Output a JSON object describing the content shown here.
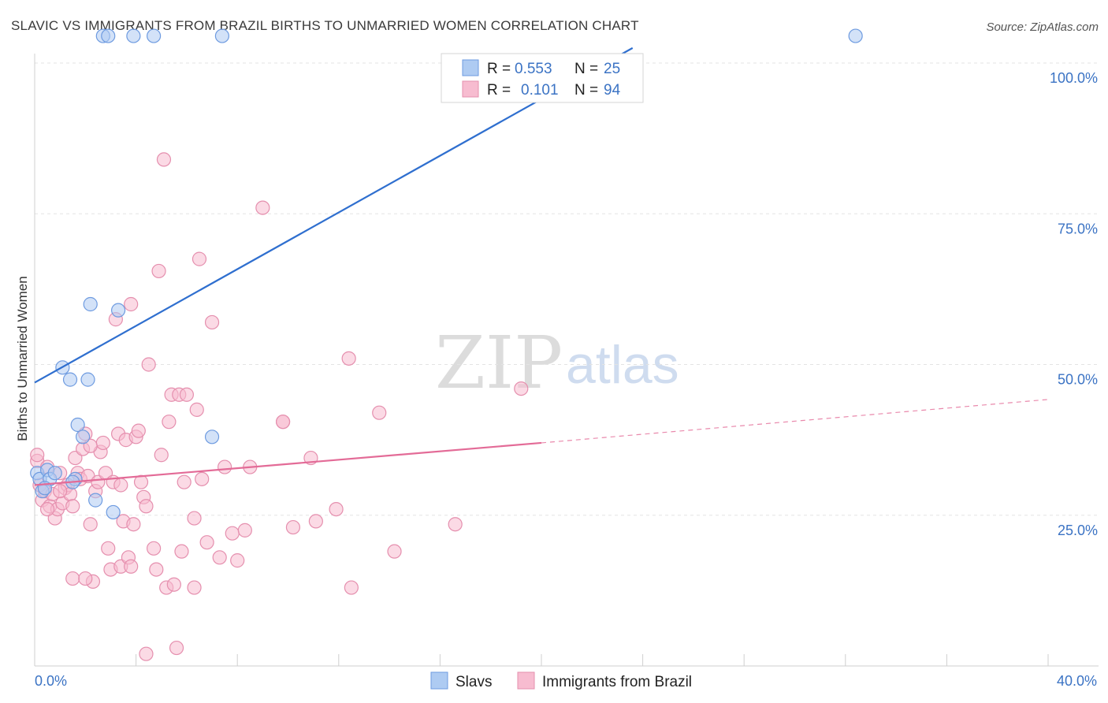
{
  "header": {
    "title": "SLAVIC VS IMMIGRANTS FROM BRAZIL BIRTHS TO UNMARRIED WOMEN CORRELATION CHART",
    "source": "Source: ZipAtlas.com"
  },
  "watermark": {
    "zip": "ZIP",
    "atlas": "atlas"
  },
  "legend": {
    "rows": [
      {
        "r_label": "R =",
        "r_value": "0.553",
        "n_label": "N =",
        "n_value": "25"
      },
      {
        "r_label": "R =",
        "r_value": "0.101",
        "n_label": "N =",
        "n_value": "94"
      }
    ]
  },
  "bottom_legend": {
    "slavs": "Slavs",
    "brazil": "Immigrants from Brazil"
  },
  "colors": {
    "slavs_fill": "#aecbf2",
    "slavs_stroke": "#6e9be0",
    "slavs_line": "#2f6fcf",
    "brazil_fill": "#f7bcd0",
    "brazil_stroke": "#e58fae",
    "brazil_line": "#e36b97",
    "tick_text": "#3b73c4",
    "grid": "#e3e3e3"
  },
  "chart_data": {
    "type": "scatter",
    "title": "SLAVIC VS IMMIGRANTS FROM BRAZIL BIRTHS TO UNMARRIED WOMEN CORRELATION CHART",
    "xlabel": "",
    "ylabel": "Births to Unmarried Women",
    "xlim": [
      0,
      40
    ],
    "ylim": [
      0,
      100
    ],
    "x_tick_labels": {
      "min": "0.0%",
      "max": "40.0%"
    },
    "y_ticks": [
      {
        "value": 25,
        "label": "25.0%"
      },
      {
        "value": 50,
        "label": "50.0%"
      },
      {
        "value": 75,
        "label": "75.0%"
      },
      {
        "value": 100,
        "label": "100.0%"
      }
    ],
    "grid": true,
    "legend_position": "top-center",
    "series": [
      {
        "name": "Slavs",
        "r": 0.553,
        "n": 25,
        "trend": {
          "x_start": 0.0,
          "y_start": 47.0,
          "x_end": 23.6,
          "y_end": 102.5,
          "dashed_extension": false
        },
        "points": [
          [
            0.1,
            32.0
          ],
          [
            0.2,
            31.0
          ],
          [
            0.3,
            29.0
          ],
          [
            0.5,
            32.5
          ],
          [
            0.6,
            31.0
          ],
          [
            0.8,
            32.0
          ],
          [
            1.1,
            49.5
          ],
          [
            1.4,
            47.5
          ],
          [
            1.6,
            31.0
          ],
          [
            1.7,
            40.0
          ],
          [
            1.9,
            38.0
          ],
          [
            2.1,
            47.5
          ],
          [
            2.2,
            60.0
          ],
          [
            2.4,
            27.5
          ],
          [
            2.7,
            104.5
          ],
          [
            2.9,
            104.5
          ],
          [
            3.1,
            25.5
          ],
          [
            3.3,
            59.0
          ],
          [
            3.9,
            104.5
          ],
          [
            4.7,
            104.5
          ],
          [
            7.4,
            104.5
          ],
          [
            7.0,
            38.0
          ],
          [
            32.4,
            104.5
          ],
          [
            0.4,
            29.5
          ],
          [
            1.5,
            30.5
          ]
        ]
      },
      {
        "name": "Immigrants from Brazil",
        "r": 0.101,
        "n": 94,
        "trend": {
          "x_start": 0.0,
          "y_start": 30.0,
          "x_end": 20.0,
          "y_end": 37.0,
          "dashed_to_x": 40.0,
          "dashed_to_y": 44.2
        },
        "points": [
          [
            0.1,
            34.0
          ],
          [
            0.2,
            30.0
          ],
          [
            0.3,
            27.5
          ],
          [
            0.4,
            29.0
          ],
          [
            0.5,
            33.0
          ],
          [
            0.6,
            26.5
          ],
          [
            0.7,
            28.5
          ],
          [
            0.8,
            24.5
          ],
          [
            0.9,
            26.0
          ],
          [
            1.0,
            32.0
          ],
          [
            1.1,
            27.0
          ],
          [
            1.2,
            29.5
          ],
          [
            1.3,
            30.0
          ],
          [
            1.4,
            28.5
          ],
          [
            1.5,
            26.5
          ],
          [
            1.6,
            34.5
          ],
          [
            1.7,
            32.0
          ],
          [
            1.8,
            31.0
          ],
          [
            1.9,
            36.0
          ],
          [
            2.0,
            38.5
          ],
          [
            2.1,
            31.5
          ],
          [
            2.2,
            23.5
          ],
          [
            2.3,
            14.0
          ],
          [
            2.4,
            29.0
          ],
          [
            2.5,
            30.5
          ],
          [
            2.6,
            35.5
          ],
          [
            2.7,
            37.0
          ],
          [
            2.8,
            32.0
          ],
          [
            2.9,
            19.5
          ],
          [
            3.0,
            16.0
          ],
          [
            3.1,
            30.5
          ],
          [
            3.2,
            57.5
          ],
          [
            3.3,
            38.5
          ],
          [
            3.4,
            16.5
          ],
          [
            3.5,
            24.0
          ],
          [
            3.6,
            37.5
          ],
          [
            3.7,
            18.0
          ],
          [
            3.8,
            60.0
          ],
          [
            3.9,
            23.5
          ],
          [
            4.0,
            38.0
          ],
          [
            4.1,
            39.0
          ],
          [
            4.2,
            30.5
          ],
          [
            4.3,
            28.0
          ],
          [
            4.4,
            26.5
          ],
          [
            4.5,
            50.0
          ],
          [
            4.7,
            19.5
          ],
          [
            4.8,
            16.0
          ],
          [
            4.9,
            65.5
          ],
          [
            5.0,
            35.0
          ],
          [
            5.1,
            84.0
          ],
          [
            5.2,
            13.0
          ],
          [
            5.3,
            40.5
          ],
          [
            5.4,
            45.0
          ],
          [
            5.5,
            13.5
          ],
          [
            5.6,
            3.0
          ],
          [
            5.7,
            45.0
          ],
          [
            5.8,
            19.0
          ],
          [
            5.9,
            30.5
          ],
          [
            6.0,
            45.0
          ],
          [
            6.3,
            24.5
          ],
          [
            6.4,
            42.5
          ],
          [
            6.5,
            67.5
          ],
          [
            6.6,
            31.0
          ],
          [
            6.8,
            20.5
          ],
          [
            7.0,
            57.0
          ],
          [
            7.3,
            18.0
          ],
          [
            7.5,
            33.0
          ],
          [
            7.8,
            22.0
          ],
          [
            8.0,
            17.5
          ],
          [
            8.3,
            22.5
          ],
          [
            9.0,
            76.0
          ],
          [
            9.8,
            40.5
          ],
          [
            10.2,
            23.0
          ],
          [
            10.9,
            34.5
          ],
          [
            11.1,
            24.0
          ],
          [
            11.9,
            26.0
          ],
          [
            12.4,
            51.0
          ],
          [
            12.5,
            13.0
          ],
          [
            13.6,
            42.0
          ],
          [
            14.2,
            19.0
          ],
          [
            16.6,
            23.5
          ],
          [
            19.2,
            46.0
          ],
          [
            1.5,
            14.5
          ],
          [
            2.0,
            14.5
          ],
          [
            4.4,
            2.0
          ],
          [
            3.8,
            16.5
          ],
          [
            6.3,
            13.0
          ],
          [
            8.5,
            33.0
          ],
          [
            1.0,
            29.0
          ],
          [
            0.5,
            26.0
          ],
          [
            2.2,
            36.5
          ],
          [
            3.4,
            30.0
          ],
          [
            9.8,
            40.5
          ],
          [
            0.1,
            35.0
          ]
        ]
      }
    ]
  }
}
